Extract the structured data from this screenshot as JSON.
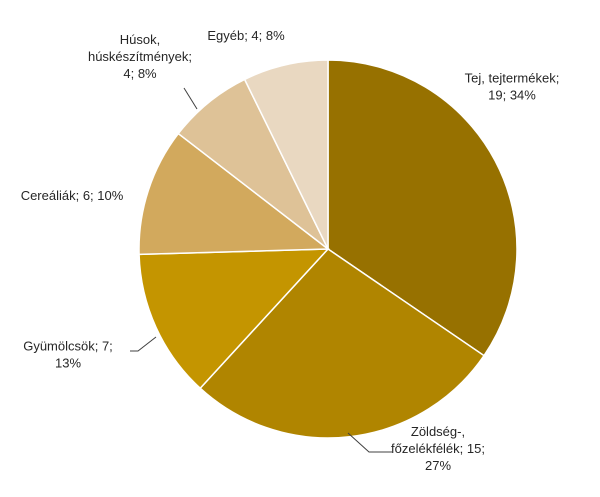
{
  "chart_data": {
    "type": "pie",
    "title": "",
    "slices": [
      {
        "category": "Tej, tejtermékek",
        "value": 19,
        "percent": 34,
        "label_lines": [
          "Tej, tejtermékek;",
          "19; 34%"
        ],
        "color": "#977100"
      },
      {
        "category": "Zöldség-, főzelékfélék",
        "value": 15,
        "percent": 27,
        "label_lines": [
          "Zöldség-,",
          "főzelékfélék; 15;",
          "27%"
        ],
        "color": "#B08500"
      },
      {
        "category": "Gyümölcsök",
        "value": 7,
        "percent": 13,
        "label_lines": [
          "Gyümölcsök; 7;",
          "13%"
        ],
        "color": "#C49500"
      },
      {
        "category": "Cereáliák",
        "value": 6,
        "percent": 10,
        "label_lines": [
          "Cereáliák; 6; 10%"
        ],
        "color": "#D2A95D"
      },
      {
        "category": "Húsok, húskészítmények",
        "value": 4,
        "percent": 8,
        "label_lines": [
          "Húsok,",
          "húskészítmények;",
          "4; 8%"
        ],
        "color": "#DEC297"
      },
      {
        "category": "Egyéb",
        "value": 4,
        "percent": 8,
        "label_lines": [
          "Egyéb; 4; 8%"
        ],
        "color": "#E9D8C1"
      }
    ]
  }
}
